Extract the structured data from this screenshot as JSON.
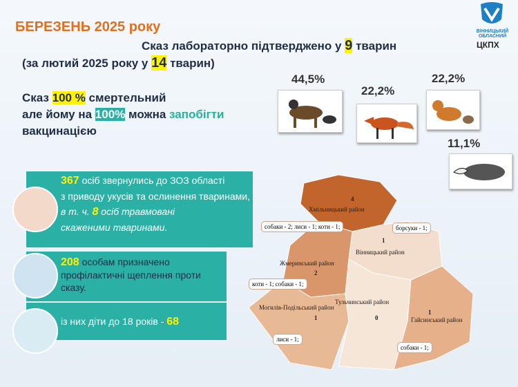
{
  "header": {
    "title": "БЕРЕЗЕНЬ 2025 року",
    "logo_top": "ВІННИЦЬКИЙ ОБЛАСНИЙ",
    "logo_bottom": "ЦКПХ"
  },
  "confirmed": {
    "pre": "Сказ лабораторно підтверджено у ",
    "count": "9",
    "post": " тварин"
  },
  "previous": {
    "pre": "(за лютий 2025 року у ",
    "count": "14",
    "post": " тварин)"
  },
  "statement": {
    "a": "Сказ ",
    "b": "100 %",
    "c": "  смертельний",
    "d": "але йому на ",
    "e": "100%",
    "f": " можна ",
    "g": "запобігти",
    "h": "вакцинацією"
  },
  "animals": [
    {
      "share": "44,5%"
    },
    {
      "share": "22,2%"
    },
    {
      "share": "22,2%"
    },
    {
      "share": "11,1%"
    }
  ],
  "boxes": [
    {
      "num": "367",
      "t1": " осіб звернулись до ЗОЗ області",
      "t2": "з приводу укусів та ослинення тваринами,",
      "t3": "в т. ч. ",
      "num2": "8",
      "t4": " осіб травмовані",
      "t5": "скаженими тваринами."
    },
    {
      "num": "208",
      "t1": " особам призначено",
      "t2": "профілактичні щеплення проти",
      "t3": "сказу."
    },
    {
      "t1": "із них діти до 18 років - ",
      "num": "68"
    }
  ],
  "map": {
    "districts": [
      {
        "name": "Хмільницький район",
        "count": 4
      },
      {
        "name": "Вінницький район",
        "count": 1
      },
      {
        "name": "Жмеринський район",
        "count": 2
      },
      {
        "name": "Могилів-Подільський район",
        "count": 1
      },
      {
        "name": "Тульчинський район",
        "count": 0
      },
      {
        "name": "Гайсинський район",
        "count": 1
      }
    ],
    "callouts": [
      "собаки - 2; лиси - 1; коти - 1;",
      "борсуки - 1;",
      "коти - 1; собаки - 1;",
      "лиси - 1;",
      "собаки - 1;"
    ]
  }
}
